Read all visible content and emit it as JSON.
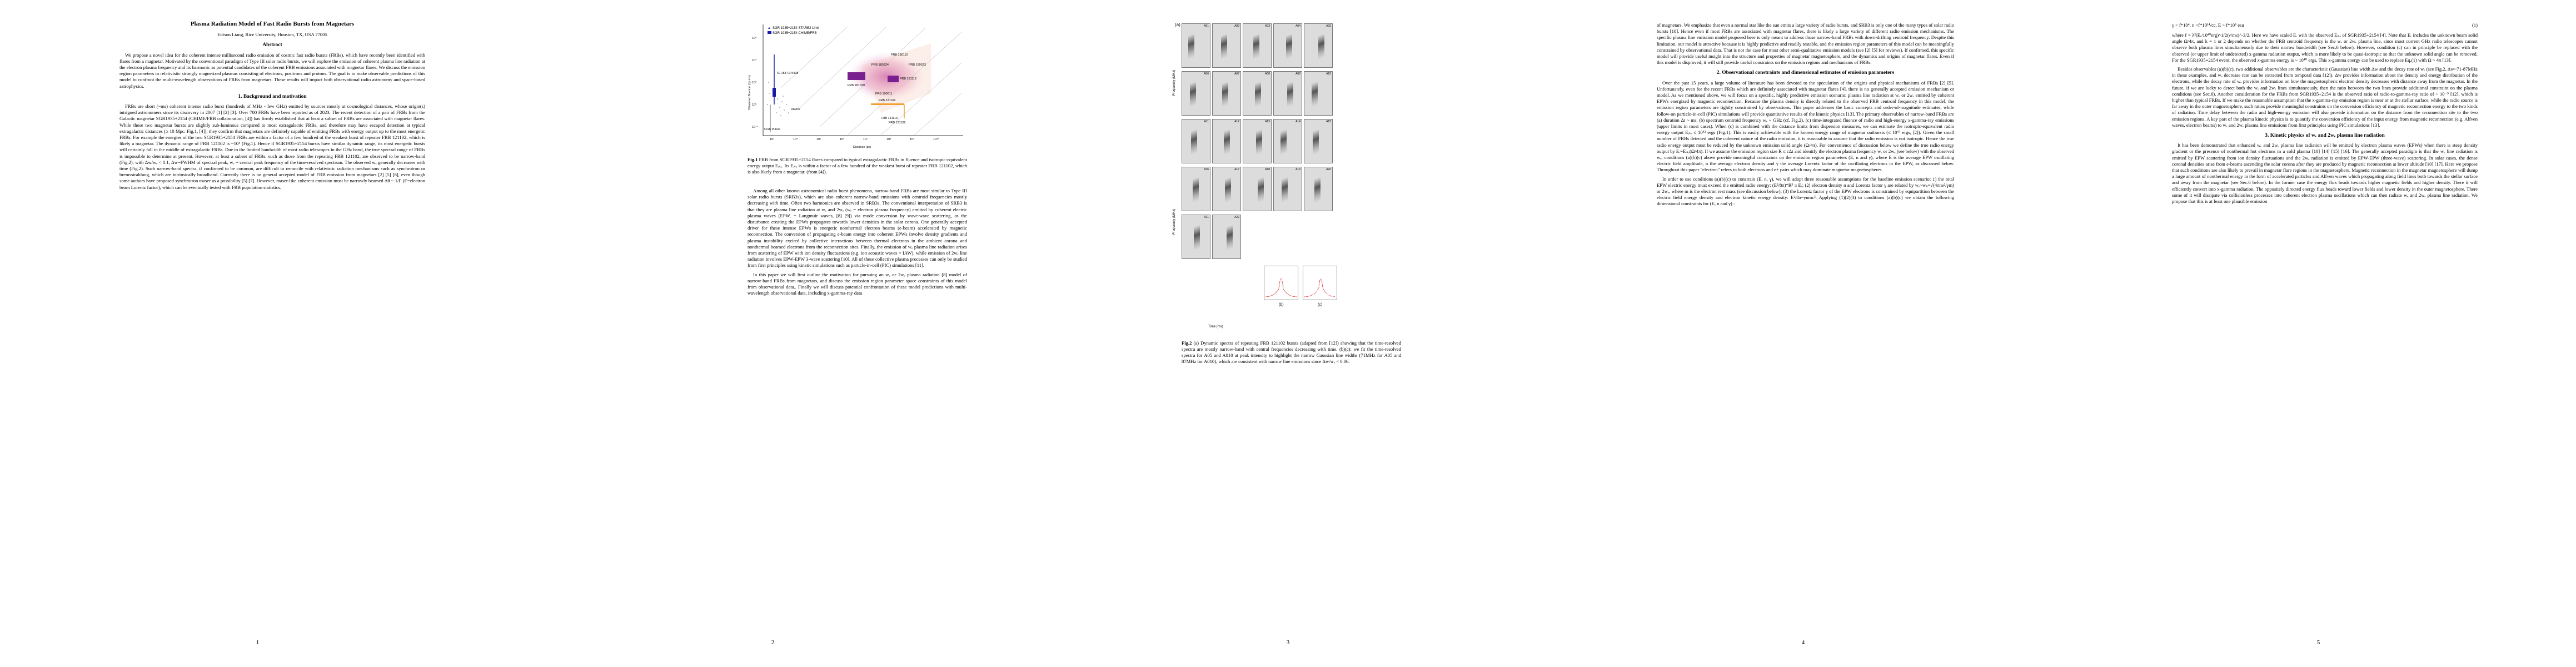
{
  "page1": {
    "title": "Plasma Radiation Model of Fast Radio Bursts from Magnetars",
    "author": "Edison Liang, Rice University, Houston, TX, USA 77005",
    "abstract_heading": "Abstract",
    "abstract": "We propose a novel idea for the coherent intense millisecond radio emission of cosmic fast radio bursts (FRBs), which have recently been identified with flares from a magnetar. Motivated by the conventional paradigm of Type III solar radio bursts, we will explore the emission of coherent plasma line radiation at the electron plasma frequency and its harmonic as potential candidates of the coherent FRB emissions associated with magnetar flares. We discuss the emission region parameters in relativistic strongly magnetized plasmas consisting of electrons, positrons and protons. The goal is to make observable predictions of this model to confront the multi-wavelength observations of FRBs from magnetars. These results will impact both observational radio astronomy and space-based astrophysics.",
    "section1": "1. Background and motivation",
    "para1": "FRBs are short (~ms) coherent intense radio burst (hundreds of MHz - few GHz) emitted by sources mostly at cosmological distances, whose origin(s) intrigued astronomers since its discovery in 2007 [1] [2] [3]. Over 700 FRBs have been reported as of 2023. The recent detection of a pair of FRBs from the Galactic magnetar SGR1935+2154 (CHIME/FRB collaboration, [4]) has firmly established that at least a subset of FRBs are associated with magnetar flares. While these two magnetar bursts are slightly sub-luminous compared to most extragalactic FRBs, and therefore may have escaped detection at typical extragalactic distances (≥ 10 Mpc. Fig.1, [4]), they confirm that magnetars are definitely capable of emitting FRBs with energy output up to the most energetic FRBs. For example the energies of the two SGR1935+2154 FRBs are within a factor of a few hundred of the weakest burst of repeater FRB 121102, which is likely a magnetar. The dynamic range of FRB 121102 is ~10⁴ (Fig.1). Hence if SGR1935+2154 bursts have similar dynamic range, its most energetic bursts will certainly fall in the middle of extragalactic FRBs. Due to the limited bandwidth of most radio telescopes in the GHz band, the true spectral range of FRBs is impossible to determine at present. However, at least a subset of FRBs, such as those from the repeating FRB 121102, are observed to be narrow-band (Fig.2), with Δw/wₑ < 0.1, Δw=FWHM of spectral peak, wₑ = central peak frequency of the time-resolved spectrum. The observed wₑ generally decreases with time (Fig.2). Such narrow-band spectra, if confirmed to be common, are difficult to reconcile with relativistic radiation mechanisms such as synchrotron or bremsstrahlung, which are intrinsically broadband. Currently there is no general accepted model of FRB emission from magnetars [2] [5] [6], even though some authors have proposed synchrotron maser as a possibility [5] [7]. However, maser-like coherent emission must be narrowly beamed Δθ ~ 1/Γ (Γ=electron beam Lorentz factor), which can be eventually tested with FRB population statistics.",
    "page_number": "1"
  },
  "page2": {
    "legend_star2": "SGR 1935+2154 STARE2 Limit",
    "legend_chime": "SGR 1935+2154 CHIME/FRB",
    "axis_y": "Observed fluence (Jy ms)",
    "axis_x": "Distance (pc)",
    "label_crab": "Crab Pulsar",
    "label_rrats": "RRATs",
    "label_te": "TE 1547.0-5408",
    "frb_labels": [
      "FRB 180110",
      "FRB 180924",
      "FRB 190523",
      "FRB 181030",
      "FRB 181112",
      "FRB 190611",
      "FRB 121102",
      "FRB 141113",
      "FRB 121102"
    ],
    "y_ticks": [
      "10⁶",
      "10⁴",
      "10²",
      "10⁰",
      "10⁻²"
    ],
    "x_ticks": [
      "10³",
      "10⁴",
      "10⁵",
      "10⁶",
      "10⁷",
      "10⁸",
      "10⁹",
      "10¹⁰"
    ],
    "fig1_caption_bold": "Fig.1",
    "fig1_caption": " FRB from SGR1935+2154 flares compared to typical extragalactic FRBs in fluence and isotropic-equivalent energy output Eᵢₛₒ. Its Eᵢₛₒ is within a factor of a few hundred of the weakest burst of repeater FRB 121102, which is also likely from a magnetar. (from [4]).",
    "para1": "Among all other known astronomical radio burst phenomena, narrow-band FRBs are most similar to Type III solar radio bursts (SRB3s), which are also coherent narrow-band emissions with centroid frequencies mostly decreasing with time. Often two harmonics are observed in SRB3s. The conventional interpretation of SRB3 is that they are plasma line radiation at wₑ and 2wₑ (wₑ = electron plasma frequency) emitted by coherent electric plasma waves (EPW, = Langmuir waves, [8] [9]) via mode conversion by wave-wave scattering, as the disturbance creating the EPWs propagates towards lower densities in the solar corona. One generally accepted driver for these intense EPWs is energetic nonthermal electron beams (e-beam) accelerated by magnetic reconnection. The conversion of propagating e-beam energy into coherent EPWs involve density gradients and plasma instability excited by collective interactions between thermal electrons in the ambient corona and nonthermal beamed electrons from the reconnection sites. Finally, the emission of wₑ plasma line radiation arises from scattering of EPW with ion density fluctuations (e.g. ion acoustic waves = IAW), while emission of 2wₑ line radiation involves EPW-EPW 3-wave scattering [10]. All of these collective plasma processes can only be studied from first principles using kinetic simulations such as particle-in-cell (PIC) simulations [11].",
    "para2": "In this paper we will first outline the motivation for pursuing an wₑ or 2wₑ plasma radiation [8] model of narrow-band FRBs from magnetars, and discuss the emission region parameter space constraints of this model from observational data.. Finally we will discuss potential confrontation of these model predictions with multi-wavelength observational data, including x-gamma-ray data",
    "page_number": "2"
  },
  "page3": {
    "panel_a": "(a)",
    "panel_b": "(b)",
    "panel_c": "(c)",
    "freq_label": "Frequency (MHz)",
    "time_label": "Time (ms)",
    "panel_labels": [
      "A01",
      "A02",
      "A03",
      "A04",
      "A05",
      "A06",
      "A07",
      "A08",
      "A09",
      "A10",
      "A11",
      "A12",
      "A13",
      "A14",
      "A15",
      "A16",
      "A17",
      "A18",
      "A19",
      "A20",
      "A21",
      "A22",
      "A23",
      "A24",
      "A25"
    ],
    "fig2_caption_bold": "Fig.2",
    "fig2_caption": " (a) Dynamic spectra of repeating FRB 121102 bursts (adapted from [12]) showing that the time-resolved spectra are mostly narrow-band with central frequencies decreasing with time. (b)(c): we fit the time-resolved spectra for A05 and A010 at peak intensity to highlight the narrow Gaussian line widths (71MHz for A05 and 87MHz for A010), which are consistent with narrow line emissions since Δw/wₑ < 0.06.",
    "page_number": "3"
  },
  "page4": {
    "para1": "of magnetars. We emphasize that even a normal star like the sun emits a large variety of radio bursts, and SRB3 is only one of the many types of solar radio bursts [10]. Hence even if most FRBs are associated with magnetar flares, there is likely a large variety of different radio emission mechanisms. The specific plasma line emission model proposed here is only meant to address those narrow-band FRBs with down-drifting centroid frequency. Despite this limitation, our model is attractive because it is highly predictive and readily testable, and the emission region parameters of this model can be meaningfully constrained by observational data. That is not the case for most other semi-qualitative emission models (see [2] [5] for reviews). If confirmed, this specific model will provide useful insight into the structure and properties of magnetar magnetosphere, and the dynamics and origins of magnetar flares. Even if this model is disproved, it will still provide useful constraints on the emission regions and mechanisms of FRBs.",
    "section2": "2. Observational constraints and dimensional estimates of emission parameters",
    "para2": "Over the past 15 years, a large volume of literature has been devoted to the speculation of the origins and physical mechanisms of FRBs [2] [5]. Unfortunately, even for the recent FRBs which are definitely associated with magnetar flares [4], there is no generally accepted emission mechanism or model. As we mentioned above, we will focus on a specific, highly predictive emission scenario: plasma line radiation at wₑ or 2wₑ emitted by coherent EPWs energized by magnetic reconnection. Because the plasma density is directly related to the observed FRB centroid frequency in this model, the emission region parameters are tightly constrained by observations. This paper addresses the basic concepts and order-of-magnitude estimates, while follow-on particle-in-cell (PIC) simulations will provide quantitative results of the kinetic physics [13]. The primary observables of narrow-band FRBs are (a) duration Δt ~ ms, (b) spectrum centroid frequency wₑ ~ GHz (cf. Fig.2), (c) time-integrated fluence of radio and high-energy x-gamma-ray emissions (upper limits in most cases). When (c) is combined with the distance limits from dispersion measures, we can estimate the isotropic-equivalent radio energy output Eᵢₛₒ ≤ 10⁴² ergs (Fig.1). This is easily achievable with the known energy range of magnetar outbursts (≤ 10⁴⁷ ergs, [2]). Given the small number of FRBs detected and the coherent nature of the radio emission, it is reasonable to assume that the radio emission is not isotropic. Hence the true radio energy output must be reduced by the unknown emission solid angle (Ω/4π). For convenience of discussion below we define the true radio energy output by Eᵣ=Eᵢₛₒ(Ω/4π). If we assume the emission region size R ≤ cΔt and identify the electron plasma frequency wₑ or 2wₑ (see below) with the observed wₑ, conditions (a)(b)(c) above provide meaningful constraints on the emission region parameters (E, n and γ), where E is the average EPW oscillating electric field amplitude, n the average electron density and γ the average Lorentz factor of the oscillating electrons in the EPW, as discussed below. Throughout this paper \"electron\" refers to both electrons and e+ pairs which may dominate magnetar magnetospheres.",
    "para3": "In order to use conditions (a)(b)(c) to constrain (E, n, γ), we will adopt three reasonable assumptions for the baseline emission scenario: 1) the total EPW electric energy must exceed the emitted radio energy: (E²/8π)*R³ ≥ Eᵣ; (2) electron density n and Lorentz factor γ are related by wₑ~wₚ=√(4πne²/γm) or 2wₑ, where m is the electron rest mass (see discussion below); (3) the Lorentz factor γ of the EPW electrons is constrained by equipartition between the electric field energy density and electron kinetic energy density: E²/8π~γnmc². Applying (1)(2)(3) to conditions (a)(b)(c) we obtain the following dimensional constraints for (E, n and γ) :",
    "page_number": "4"
  },
  "page5": {
    "equation": "γ < f*10⁴,  n <f*10¹⁴/cc,  E > f*10⁸ esu",
    "eq_number": "(1)",
    "para1": "where f = λ²(Eᵣ/10⁴⁰erg)^1/2(ν/ms)^-3/2. Here we have scaled Eᵣ with the observed Eᵢₛₒ of SGR1935+2154 [4]. Note that Eᵣ includes the unknown beam solid angle Ω/4π, and k = 1 or 2 depends on whether the FRB centroid frequency is the wₑ or 2wₑ plasma line, since most current GHz radio telescopes cannot observe both plasma lines simultaneously due to their narrow bandwidth (see Sec.6 below). However, condition (c) can in principle be replaced with the observed (or upper limit of undetected) x-gamma radiation output, which is more likely to be quasi-isotropic so that the unknown solid angle can be removed. For the SGR1935+2154 event, the observed x-gamma energy is ~ 10⁴⁰ ergs. This x-gamma energy can be used to replace Eq.(1) with Ω ~ 4π [13].",
    "para2": "Besides observables (a)(b)(c), two additional observables are the characteristic (Gaussian) line width Δw and the decay rate of wₑ (see Fig.2, Δw~71-87MHz in these examples, and wₑ decrease rate can be extracted from temporal data [12]). Δw provides information about the density and energy distribution of the electrons, while the decay rate of wₑ provides information on how the magnetospheric electron density decreases with distance away from the magnetar. In the future, if we are lucky to detect both the wₑ and 2wₑ lines simultaneously, then the ratio between the two lines provide additional constraint on the plasma conditions (see Sec.6). Another consideration for the FRBs from SGR1935+2154 is the observed ratio of radio-to-gamma-ray ratio of ~ 10⁻⁵ [12], which is higher than typical FRBs. If we make the reasonable assumption that the x-gamma-ray emission region is near or at the stellar surface, while the radio source is far away in the outer magnetosphere, such ratios provide meaningful constraints on the conversion efficiency of magnetic reconnection energy to the two kinds of radiation. Time delay between the radio and high-energy emission will also provide information on the distance from the reconnection site to the two emission regions. A key part of the plasma kinetic physics is to quantify the conversion efficiency of the input energy from magnetic reconnection (e.g. Alfven waves, electron beams) to wₑ and 2wₑ plasma line emissions from first principles using PIC simulations [13].",
    "section3": "3. Kinetic physics of wₑ and 2wₑ plasma line radiation",
    "para3": "It has been demonstrated that enhanced wₑ and 2wₑ plasma line radiation will be emitted by electron plasma waves (EPWs) when there is steep density gradient or the presence of nonthermal hot electrons in a cold plasma [10] [14] [15] [16]. The generally accepted paradigm is that the wₑ line radiation is emitted by EPW scattering from ion density fluctuations and the 2wₑ radiation is emitted by EPW-EPW (three-wave) scattering. In solar cases, the dense coronal densities arise from e-beams ascending the solar corona after they are produced by magnetic reconnection at lower altitude [10] [17]. Here we propose that such conditions are also likely to prevail in magnetar flare regions in the magnetosphere. Magnetic reconnection in the magnetar magnetosphere will dump a large amount of nonthermal energy in the form of accelerated particles and Alfven waves which propagating along field lines both towards the stellar surface and away from the magnetar (see Sec.6 below). In the former case the energy flux heads towards higher magnetic fields and higher density. There it will efficiently convert into x-gamma radiation. The oppositely directed energy flux heads toward lower fields and lower density in the outer magnetosphere. There some of it will dissipate via collisionless processes into coherent electron plasma oscillations which can then radiate wₑ and 2wₑ plasma line radiation. We propose that this is at least one plausible emission",
    "page_number": "5"
  },
  "colors": {
    "chime_blue": "#1a1aa8",
    "frb_purple": "#7a1f8f",
    "frb_pink": "#e8a0c8",
    "frb_orange": "#f0a030",
    "fit_red": "#d02020"
  }
}
